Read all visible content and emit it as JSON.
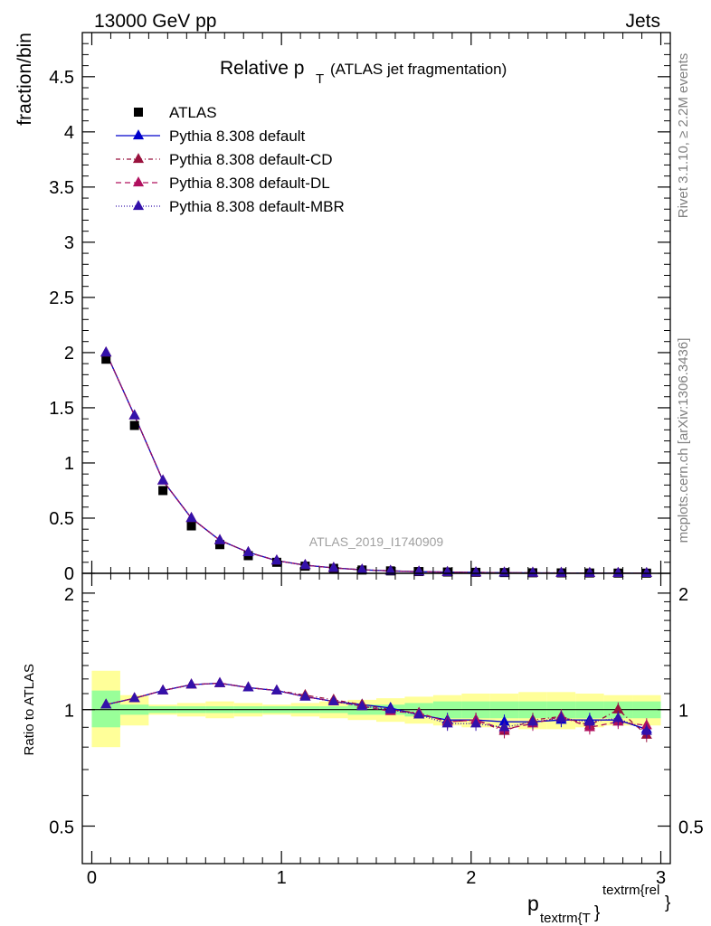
{
  "header": {
    "left": "13000 GeV pp",
    "right": "Jets"
  },
  "side": {
    "rivet": "Rivet 3.1.10, ≥ 2.2M events",
    "mcplots": "mcplots.cern.ch [arXiv:1306.3436]"
  },
  "title": {
    "main": "Relative p",
    "sub": "T",
    "paren": "(ATLAS jet fragmentation)"
  },
  "watermark": "ATLAS_2019_I1740909",
  "xlabel": {
    "p": "p",
    "sub": "textrm{T",
    "brace": "}",
    "sup": "textrm{rel",
    "brace2": "}"
  },
  "legend": [
    {
      "label": "ATLAS",
      "color": "#000000",
      "marker": "square",
      "dash": ""
    },
    {
      "label": "Pythia 8.308 default",
      "color": "#0000cc",
      "marker": "triangle",
      "dash": ""
    },
    {
      "label": "Pythia 8.308 default-CD",
      "color": "#99113d",
      "marker": "triangle",
      "dash": "5,3,1,3"
    },
    {
      "label": "Pythia 8.308 default-DL",
      "color": "#b0105e",
      "marker": "triangle",
      "dash": "6,4"
    },
    {
      "label": "Pythia 8.308 default-MBR",
      "color": "#3311aa",
      "marker": "triangle",
      "dash": "1,2"
    }
  ],
  "chart_data": [
    {
      "type": "scatter",
      "name": "main",
      "ylabel": "fraction/bin",
      "xlim": [
        -0.05,
        3.05
      ],
      "ylim": [
        0,
        4.9
      ],
      "yticks": [
        0,
        0.5,
        1,
        1.5,
        2,
        2.5,
        3,
        3.5,
        4,
        4.5
      ],
      "ytick_labels": [
        "0",
        "0.5",
        "1",
        "1.5",
        "2",
        "2.5",
        "3",
        "3.5",
        "4",
        "4.5"
      ],
      "x": [
        0.075,
        0.225,
        0.375,
        0.525,
        0.675,
        0.825,
        0.975,
        1.125,
        1.275,
        1.425,
        1.575,
        1.725,
        1.875,
        2.025,
        2.175,
        2.325,
        2.475,
        2.625,
        2.775,
        2.925
      ],
      "data": [
        1.94,
        1.34,
        0.75,
        0.43,
        0.26,
        0.16,
        0.1,
        0.065,
        0.045,
        0.03,
        0.022,
        0.016,
        0.012,
        0.009,
        0.007,
        0.005,
        0.004,
        0.003,
        0.002,
        0.0015
      ],
      "series": [
        {
          "name": "Pythia 8.308 default",
          "values": [
            2.0,
            1.43,
            0.84,
            0.5,
            0.3,
            0.19,
            0.115,
            0.074,
            0.049,
            0.032,
            0.022,
            0.015,
            0.011,
            0.008,
            0.006,
            0.0045,
            0.0035,
            0.0028,
            0.002,
            0.0014
          ]
        },
        {
          "name": "Pythia 8.308 default-CD",
          "values": [
            2.0,
            1.43,
            0.84,
            0.5,
            0.3,
            0.19,
            0.115,
            0.074,
            0.049,
            0.032,
            0.022,
            0.015,
            0.011,
            0.008,
            0.006,
            0.0045,
            0.0035,
            0.0028,
            0.002,
            0.0014
          ]
        },
        {
          "name": "Pythia 8.308 default-DL",
          "values": [
            2.0,
            1.43,
            0.84,
            0.5,
            0.3,
            0.19,
            0.115,
            0.074,
            0.049,
            0.032,
            0.022,
            0.015,
            0.011,
            0.008,
            0.006,
            0.0045,
            0.0035,
            0.0028,
            0.002,
            0.0014
          ]
        },
        {
          "name": "Pythia 8.308 default-MBR",
          "values": [
            2.0,
            1.43,
            0.84,
            0.5,
            0.3,
            0.19,
            0.115,
            0.074,
            0.049,
            0.032,
            0.022,
            0.015,
            0.011,
            0.008,
            0.006,
            0.0045,
            0.0035,
            0.0028,
            0.002,
            0.0014
          ]
        }
      ]
    },
    {
      "type": "scatter",
      "name": "ratio",
      "ylabel": "Ratio to ATLAS",
      "scale": "log",
      "ylim": [
        0.4,
        2.25
      ],
      "yticks": [
        0.5,
        1,
        2
      ],
      "ytick_labels": [
        "0.5",
        "1",
        "2"
      ],
      "xticks": [
        0,
        1,
        2,
        3
      ],
      "xtick_labels": [
        "0",
        "1",
        "2",
        "3"
      ],
      "reference": 1,
      "bin_edges": [
        0,
        0.15,
        0.3,
        0.45,
        0.6,
        0.75,
        0.9,
        1.05,
        1.2,
        1.35,
        1.5,
        1.65,
        1.8,
        1.95,
        2.1,
        2.25,
        2.4,
        2.55,
        2.7,
        2.85,
        3.0
      ],
      "band_inner": [
        [
          0.9,
          1.12
        ],
        [
          0.97,
          1.03
        ],
        [
          0.98,
          1.02
        ],
        [
          0.98,
          1.02
        ],
        [
          0.98,
          1.02
        ],
        [
          0.98,
          1.02
        ],
        [
          0.98,
          1.02
        ],
        [
          0.98,
          1.02
        ],
        [
          0.98,
          1.02
        ],
        [
          0.97,
          1.03
        ],
        [
          0.97,
          1.03
        ],
        [
          0.96,
          1.04
        ],
        [
          0.95,
          1.05
        ],
        [
          0.95,
          1.05
        ],
        [
          0.95,
          1.05
        ],
        [
          0.95,
          1.05
        ],
        [
          0.95,
          1.05
        ],
        [
          0.95,
          1.05
        ],
        [
          0.95,
          1.05
        ],
        [
          0.95,
          1.05
        ]
      ],
      "band_outer": [
        [
          0.8,
          1.26
        ],
        [
          0.91,
          1.09
        ],
        [
          0.97,
          1.03
        ],
        [
          0.96,
          1.04
        ],
        [
          0.95,
          1.05
        ],
        [
          0.96,
          1.04
        ],
        [
          0.97,
          1.03
        ],
        [
          0.96,
          1.04
        ],
        [
          0.95,
          1.05
        ],
        [
          0.94,
          1.06
        ],
        [
          0.93,
          1.07
        ],
        [
          0.92,
          1.08
        ],
        [
          0.91,
          1.09
        ],
        [
          0.9,
          1.1
        ],
        [
          0.9,
          1.1
        ],
        [
          0.89,
          1.11
        ],
        [
          0.89,
          1.11
        ],
        [
          0.9,
          1.1
        ],
        [
          0.91,
          1.09
        ],
        [
          0.91,
          1.09
        ]
      ],
      "series": [
        {
          "name": "Pythia 8.308 default",
          "values": [
            1.03,
            1.07,
            1.12,
            1.16,
            1.17,
            1.14,
            1.12,
            1.08,
            1.05,
            1.03,
            1.01,
            0.97,
            0.94,
            0.94,
            0.93,
            0.93,
            0.94,
            0.94,
            0.94,
            0.89
          ]
        },
        {
          "name": "Pythia 8.308 default-CD",
          "values": [
            1.03,
            1.07,
            1.12,
            1.16,
            1.17,
            1.14,
            1.12,
            1.09,
            1.06,
            1.03,
            1.0,
            0.98,
            0.93,
            0.94,
            0.88,
            0.94,
            0.96,
            0.91,
            1.0,
            0.86
          ]
        },
        {
          "name": "Pythia 8.308 default-DL",
          "values": [
            1.03,
            1.07,
            1.12,
            1.16,
            1.17,
            1.14,
            1.12,
            1.08,
            1.05,
            1.02,
            0.99,
            0.98,
            0.93,
            0.94,
            0.89,
            0.92,
            0.96,
            0.9,
            0.93,
            0.91
          ]
        },
        {
          "name": "Pythia 8.308 default-MBR",
          "values": [
            1.03,
            1.07,
            1.12,
            1.16,
            1.17,
            1.14,
            1.12,
            1.08,
            1.05,
            1.02,
            1.0,
            0.97,
            0.92,
            0.92,
            0.9,
            0.93,
            0.95,
            0.93,
            0.95,
            0.88
          ]
        }
      ]
    }
  ]
}
